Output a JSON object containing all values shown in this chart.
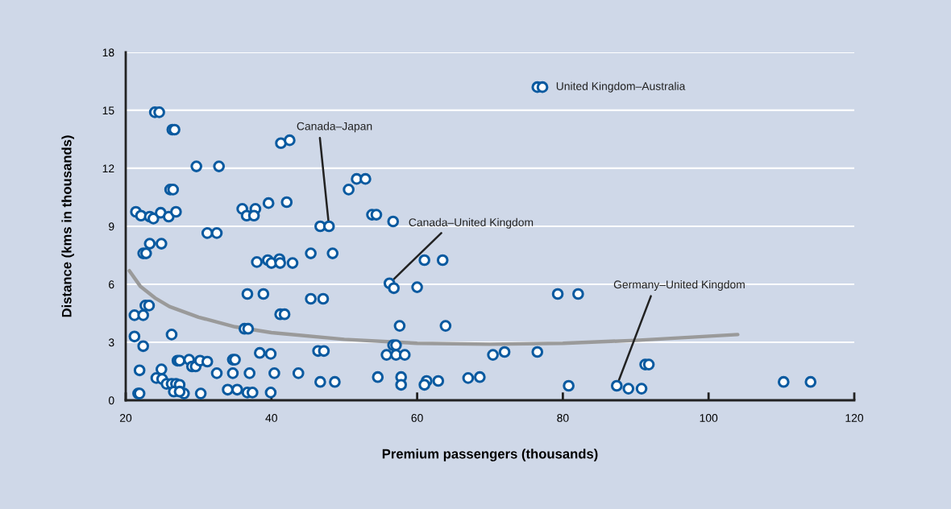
{
  "chart_data": {
    "type": "scatter",
    "xlabel": "Premium passengers (thousands)",
    "ylabel": "Distance (kms in thousands)",
    "xlim": [
      20,
      120
    ],
    "xticks": [
      20,
      40,
      60,
      80,
      100,
      120
    ],
    "ylim": [
      0,
      18
    ],
    "yticks": [
      0,
      3,
      6,
      9,
      12,
      15,
      18
    ],
    "grid": "y",
    "marker": "circle",
    "series": [
      {
        "color": "#0a5aa0",
        "x": [
          24.0,
          24.6,
          26.4,
          26.7,
          29.7,
          32.8,
          41.3,
          42.5,
          26.1,
          26.5,
          21.4,
          22.1,
          23.3,
          23.8,
          24.8,
          25.9,
          26.9,
          36.0,
          36.6,
          37.8,
          37.6,
          39.6,
          42.1,
          50.6,
          51.7,
          52.9,
          46.7,
          47.9,
          53.8,
          54.4,
          56.7,
          76.5,
          77.2,
          31.2,
          32.5,
          23.3,
          24.9,
          22.4,
          22.8,
          38.0,
          39.5,
          40.0,
          41.1,
          41.2,
          42.9,
          45.4,
          48.4,
          36.7,
          38.9,
          45.4,
          47.1,
          22.7,
          23.2,
          21.2,
          22.4,
          41.2,
          41.8,
          36.3,
          36.8,
          21.2,
          22.4,
          26.3,
          46.4,
          47.2,
          38.4,
          39.9,
          27.1,
          27.4,
          28.7,
          29.1,
          29.6,
          30.2,
          31.2,
          34.7,
          35.0,
          21.9,
          24.9,
          24.2,
          25.0,
          25.6,
          26.3,
          26.9,
          27.4,
          32.5,
          34.7,
          37.0,
          40.4,
          43.7,
          46.7,
          48.7,
          21.7,
          21.9,
          26.6,
          28.0,
          27.4,
          30.3,
          34.0,
          35.3,
          36.7,
          37.4,
          39.9,
          56.2,
          56.8,
          60.0,
          61.0,
          63.5,
          79.3,
          82.1,
          57.6,
          63.9,
          56.7,
          57.1,
          55.8,
          57.1,
          58.3,
          70.4,
          72.0,
          76.5,
          54.6,
          57.8,
          57.8,
          61.3,
          61.0,
          62.9,
          67.0,
          68.6,
          80.8,
          91.3,
          91.8,
          87.4,
          89.0,
          90.8,
          110.3,
          114.0
        ],
        "values": [
          14.9,
          14.9,
          14.0,
          14.0,
          12.1,
          12.1,
          13.3,
          13.45,
          10.9,
          10.9,
          9.75,
          9.55,
          9.5,
          9.4,
          9.7,
          9.5,
          9.75,
          9.9,
          9.55,
          9.9,
          9.55,
          10.2,
          10.25,
          10.9,
          11.45,
          11.45,
          9.0,
          9.0,
          9.6,
          9.6,
          9.25,
          16.2,
          16.2,
          8.65,
          8.65,
          8.1,
          8.1,
          7.6,
          7.6,
          7.15,
          7.25,
          7.1,
          7.3,
          7.1,
          7.1,
          7.6,
          7.6,
          5.5,
          5.5,
          5.25,
          5.25,
          4.9,
          4.9,
          4.4,
          4.4,
          4.45,
          4.45,
          3.7,
          3.7,
          3.3,
          2.8,
          3.4,
          2.55,
          2.55,
          2.45,
          2.4,
          2.05,
          2.05,
          2.1,
          1.75,
          1.75,
          2.05,
          2.0,
          2.1,
          2.1,
          1.55,
          1.6,
          1.15,
          1.1,
          0.85,
          0.85,
          0.85,
          0.8,
          1.4,
          1.4,
          1.4,
          1.4,
          1.4,
          0.95,
          0.95,
          0.35,
          0.35,
          0.45,
          0.35,
          0.45,
          0.35,
          0.55,
          0.55,
          0.4,
          0.4,
          0.4,
          6.05,
          5.8,
          5.85,
          7.25,
          7.25,
          5.5,
          5.5,
          3.85,
          3.85,
          2.85,
          2.85,
          2.35,
          2.35,
          2.35,
          2.35,
          2.5,
          2.5,
          1.2,
          1.2,
          0.8,
          1.0,
          0.8,
          1.0,
          1.15,
          1.2,
          0.75,
          1.85,
          1.85,
          0.75,
          0.6,
          0.6,
          0.95,
          0.95
        ]
      },
      {
        "type": "line",
        "color": "#9a9a9a",
        "marker": "none",
        "x": [
          20.5,
          22,
          24,
          26,
          30,
          35,
          40,
          50,
          60,
          70,
          80,
          90,
          104
        ],
        "values": [
          6.7,
          5.9,
          5.3,
          4.85,
          4.3,
          3.8,
          3.5,
          3.15,
          2.95,
          2.9,
          2.95,
          3.1,
          3.4
        ]
      }
    ],
    "annotations": [
      {
        "text": "United Kingdom–Australia",
        "x": 77.2,
        "y": 16.2
      },
      {
        "text": "Canada–Japan",
        "x": 47.9,
        "y": 9.0
      },
      {
        "text": "Canada–United Kingdom",
        "x": 56.2,
        "y": 6.05
      },
      {
        "text": "Germany–United Kingdom",
        "x": 87.4,
        "y": 0.75
      }
    ]
  }
}
